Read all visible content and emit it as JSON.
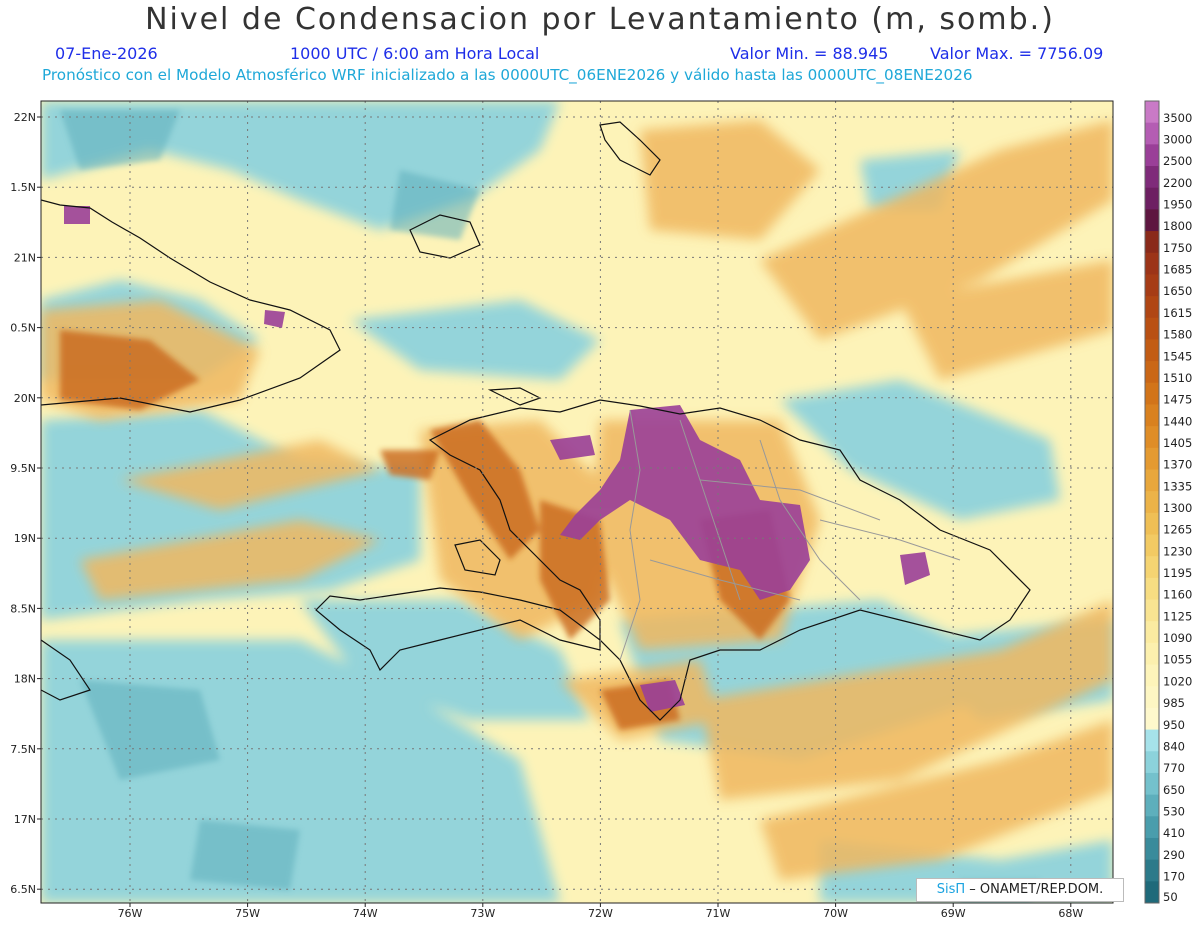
{
  "header": {
    "title": "Nivel de Condensacion por Levantamiento (m, somb.)",
    "date": "07-Ene-2026",
    "time": "1000 UTC / 6:00 am Hora Local",
    "valor_min": "Valor Min. = 88.945",
    "valor_max": "Valor Max. = 7756.09",
    "model_line": "Pronóstico con el Modelo Atmosférico WRF inicializado a las 0000UTC_06ENE2026 y válido hasta las  0000UTC_08ENE2026"
  },
  "axes": {
    "lat_labels": [
      "22N",
      "1.5N",
      "21N",
      "0.5N",
      "20N",
      "9.5N",
      "19N",
      "8.5N",
      "18N",
      "7.5N",
      "17N",
      "6.5N"
    ],
    "lon_labels": [
      "76W",
      "75W",
      "74W",
      "73W",
      "72W",
      "71W",
      "70W",
      "69W",
      "68W"
    ]
  },
  "colorbar": {
    "labels": [
      "3500",
      "3000",
      "2500",
      "2200",
      "1950",
      "1800",
      "1750",
      "1685",
      "1650",
      "1615",
      "1580",
      "1545",
      "1510",
      "1475",
      "1440",
      "1405",
      "1370",
      "1335",
      "1300",
      "1265",
      "1230",
      "1195",
      "1160",
      "1125",
      "1090",
      "1055",
      "1020",
      "985",
      "950",
      "840",
      "770",
      "650",
      "530",
      "410",
      "290",
      "170",
      "50"
    ],
    "colors": [
      "#c97ac6",
      "#b45db3",
      "#9a3f98",
      "#7f2b7a",
      "#6d1f62",
      "#5e1640",
      "#8a2a1a",
      "#9c3418",
      "#a63c16",
      "#b04614",
      "#b95013",
      "#c25c14",
      "#ca6716",
      "#d27419",
      "#d9811f",
      "#df8d27",
      "#e49a31",
      "#e8a73c",
      "#ecb348",
      "#efbf55",
      "#f2ca63",
      "#f5d472",
      "#f7dd82",
      "#f9e492",
      "#fbeba1",
      "#fcf0ae",
      "#fdf4ba",
      "#fdf6c3",
      "#fef8cc",
      "#a6e2ea",
      "#8cd2db",
      "#74c1cc",
      "#5eafbc",
      "#4a9dac",
      "#3a8b9b",
      "#2c7a8a",
      "#1f6a7a"
    ]
  },
  "credit": {
    "sis": "SisΠ",
    "org": " – ONAMET/REP.DOM."
  },
  "colors": {
    "sea_low": "#8fd3dc",
    "land_mid": "#f3c978",
    "land_high": "#d98a3a",
    "peak": "#8e3a8f"
  }
}
